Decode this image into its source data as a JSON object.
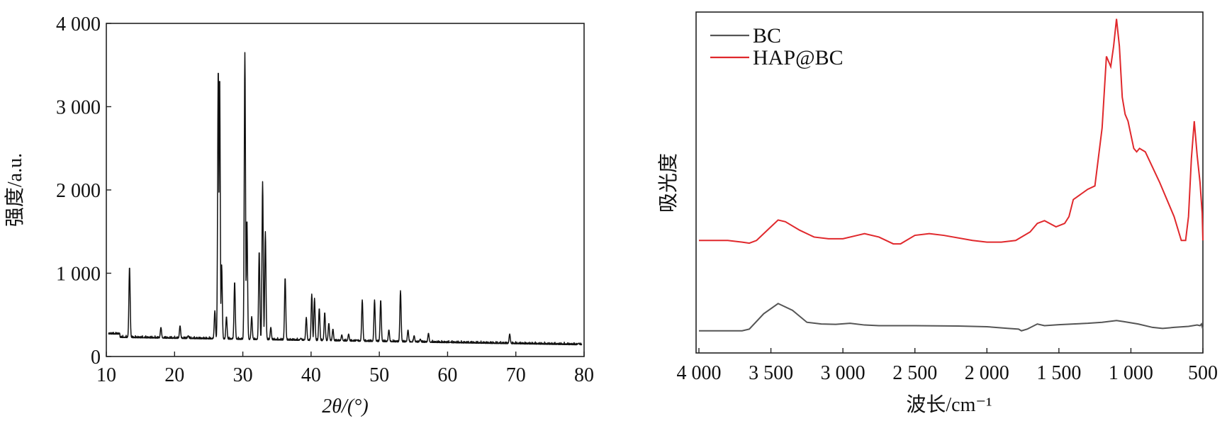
{
  "chart_data": [
    {
      "type": "line",
      "xlabel": "2θ/(°)",
      "ylabel": "强度/a.u.",
      "xlim": [
        10,
        80
      ],
      "ylim": [
        0,
        4000
      ],
      "x_ticks": [
        10,
        20,
        30,
        40,
        50,
        60,
        70,
        80
      ],
      "x_tick_labels": [
        "10",
        "20",
        "30",
        "40",
        "50",
        "60",
        "70",
        "80"
      ],
      "y_ticks": [
        0,
        1000,
        2000,
        3000,
        4000
      ],
      "y_tick_labels": [
        "0",
        "1 000",
        "2 000",
        "3 000",
        "4 000"
      ],
      "baseline": 150,
      "noise_amplitude": 30,
      "line_color": "#111111",
      "series": [
        {
          "x": [
            13.4,
            16.5,
            18.0,
            20.8,
            22.0,
            25.9,
            26.4,
            26.6,
            26.9,
            27.6,
            28.8,
            30.3,
            30.6,
            31.3,
            32.4,
            32.9,
            33.3,
            34.1,
            36.2,
            38.5,
            39.3,
            40.1,
            40.5,
            41.2,
            42.0,
            42.6,
            43.2,
            44.5,
            45.5,
            46.7,
            47.5,
            49.3,
            50.2,
            51.4,
            53.1,
            54.2,
            55.1,
            56.0,
            57.2,
            58.2,
            59.3,
            60.4,
            61.3,
            62.1,
            63.5,
            64.2,
            65.1,
            66.1,
            68.0,
            69.1,
            70.3,
            72.2,
            73.8,
            75.4,
            77.5,
            79.2
          ],
          "y": [
            1080,
            220,
            350,
            370,
            250,
            550,
            3480,
            3380,
            1100,
            480,
            900,
            3650,
            1650,
            480,
            1270,
            2100,
            1500,
            350,
            950,
            220,
            470,
            750,
            700,
            580,
            530,
            400,
            330,
            260,
            270,
            200,
            680,
            680,
            680,
            320,
            790,
            320,
            250,
            210,
            280,
            160,
            160,
            170,
            160,
            140,
            130,
            120,
            120,
            150,
            120,
            270,
            120,
            120,
            110,
            100,
            100,
            160
          ]
        }
      ]
    },
    {
      "type": "line",
      "xlabel": "波长/cm⁻¹",
      "ylabel": "吸光度",
      "xlim": [
        4000,
        500
      ],
      "x_ticks": [
        4000,
        3500,
        3000,
        2500,
        2000,
        1500,
        1000,
        500
      ],
      "x_tick_labels": [
        "4 000",
        "3 500",
        "3 000",
        "2 500",
        "2 000",
        "1 500",
        "1 000",
        "500"
      ],
      "ylim": [
        0,
        1
      ],
      "legend_position": "top-left",
      "series": [
        {
          "name": "BC",
          "color": "#555555",
          "x": [
            4000,
            3700,
            3650,
            3550,
            3450,
            3350,
            3250,
            3150,
            3050,
            2950,
            2850,
            2750,
            2500,
            2200,
            2000,
            1850,
            1780,
            1760,
            1720,
            1650,
            1600,
            1500,
            1400,
            1300,
            1200,
            1100,
            1050,
            950,
            850,
            780,
            700,
            600,
            540,
            520,
            510,
            500
          ],
          "y": [
            0.065,
            0.065,
            0.07,
            0.115,
            0.145,
            0.125,
            0.09,
            0.085,
            0.084,
            0.087,
            0.082,
            0.08,
            0.08,
            0.079,
            0.077,
            0.072,
            0.07,
            0.065,
            0.07,
            0.085,
            0.08,
            0.083,
            0.085,
            0.087,
            0.09,
            0.095,
            0.092,
            0.085,
            0.075,
            0.072,
            0.075,
            0.078,
            0.082,
            0.08,
            0.085,
            0.07
          ]
        },
        {
          "name": "HAP@BC",
          "color": "#e0282c",
          "x": [
            4000,
            3800,
            3700,
            3650,
            3600,
            3500,
            3450,
            3400,
            3300,
            3200,
            3100,
            3000,
            2900,
            2850,
            2750,
            2650,
            2600,
            2500,
            2400,
            2300,
            2100,
            2000,
            1900,
            1800,
            1700,
            1650,
            1600,
            1520,
            1460,
            1430,
            1400,
            1300,
            1250,
            1200,
            1170,
            1140,
            1120,
            1100,
            1080,
            1060,
            1040,
            1020,
            980,
            960,
            940,
            900,
            800,
            700,
            650,
            620,
            600,
            580,
            560,
            540,
            520,
            505,
            500
          ],
          "y": [
            0.33,
            0.33,
            0.325,
            0.322,
            0.33,
            0.37,
            0.39,
            0.385,
            0.36,
            0.34,
            0.335,
            0.335,
            0.345,
            0.35,
            0.34,
            0.32,
            0.32,
            0.345,
            0.35,
            0.345,
            0.33,
            0.325,
            0.325,
            0.33,
            0.355,
            0.38,
            0.388,
            0.37,
            0.38,
            0.4,
            0.45,
            0.48,
            0.49,
            0.66,
            0.87,
            0.84,
            0.9,
            0.98,
            0.9,
            0.75,
            0.7,
            0.68,
            0.6,
            0.59,
            0.6,
            0.59,
            0.5,
            0.4,
            0.33,
            0.33,
            0.4,
            0.57,
            0.68,
            0.58,
            0.5,
            0.41,
            0.33
          ]
        }
      ]
    }
  ]
}
